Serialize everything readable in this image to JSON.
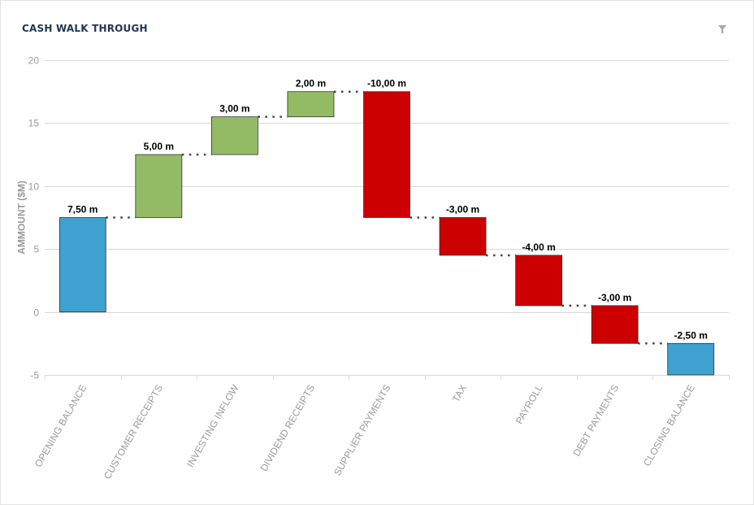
{
  "header": {
    "title": "CASH WALK THROUGH",
    "filter_icon": "filter-icon"
  },
  "colors": {
    "opening_closing": "#3ea1d0",
    "increase": "#93bb65",
    "decrease": "#cc0000",
    "grid": "#d9d9d9",
    "axis_text": "#9a9a9a",
    "label_text": "#000000"
  },
  "chart_data": {
    "type": "waterfall",
    "title": "CASH WALK THROUGH",
    "xlabel": "",
    "ylabel": "AMMOUNT ($M)",
    "ylim": [
      -5,
      20
    ],
    "yticks": [
      -5,
      0,
      5,
      10,
      15,
      20
    ],
    "grid": true,
    "categories": [
      "OPENING BALANCE",
      "CUSTOMER RECEIPTS",
      "INVESTING INFLOW",
      "DIVIDEND RECEIPTS",
      "SUPPLIER PAYMENTS",
      "TAX",
      "PAYROLL",
      "DEBT PAYMENTS",
      "CLOSING BALANCE"
    ],
    "values": [
      7.5,
      5,
      3,
      2,
      -10,
      -3,
      -4,
      -3,
      -2.5
    ],
    "kinds": [
      "total",
      "increase",
      "increase",
      "increase",
      "decrease",
      "decrease",
      "decrease",
      "decrease",
      "total"
    ],
    "data_labels": [
      "7,50 m",
      "5,00 m",
      "3,00 m",
      "2,00 m",
      "-10,00 m",
      "-3,00 m",
      "-4,00 m",
      "-3,00 m",
      "-2,50 m"
    ]
  }
}
